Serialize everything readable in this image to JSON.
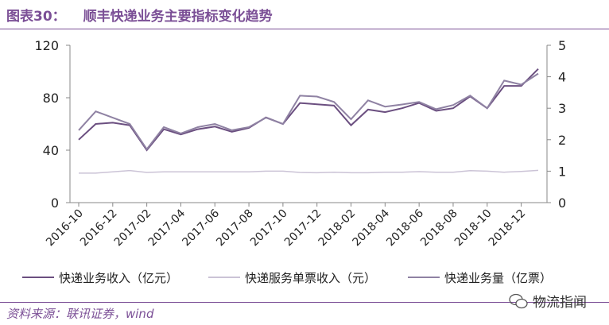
{
  "title": {
    "label": "图表30：",
    "text": "顺丰快递业务主要指标变化趋势"
  },
  "source": "资料来源：联讯证券，wind",
  "watermark": {
    "icon": "wechat-icon",
    "text": "物流指闻"
  },
  "chart_data": {
    "type": "line",
    "x": [
      "2016-10",
      "2016-11",
      "2016-12",
      "2017-01",
      "2017-02",
      "2017-03",
      "2017-04",
      "2017-05",
      "2017-06",
      "2017-07",
      "2017-08",
      "2017-09",
      "2017-10",
      "2017-11",
      "2017-12",
      "2018-01",
      "2018-02",
      "2018-03",
      "2018-04",
      "2018-05",
      "2018-06",
      "2018-07",
      "2018-08",
      "2018-09",
      "2018-10",
      "2018-11",
      "2018-12",
      "2019-01"
    ],
    "tick_labels": [
      "2016-10",
      "2016-12",
      "2017-02",
      "2017-04",
      "2017-06",
      "2017-08",
      "2017-10",
      "2017-12",
      "2018-02",
      "2018-04",
      "2018-06",
      "2018-08",
      "2018-10",
      "2018-12"
    ],
    "y_left": {
      "range": [
        0,
        120
      ],
      "ticks": [
        0,
        40,
        80,
        120
      ]
    },
    "y_right": {
      "range": [
        0,
        5
      ],
      "ticks": [
        0,
        1,
        2,
        3,
        4,
        5
      ]
    },
    "grid": false,
    "legend_placement": "bottom",
    "series": [
      {
        "name": "快递业务收入（亿元）",
        "axis": "left",
        "color": "#6b4f80",
        "values": [
          48,
          60,
          61,
          59,
          40,
          56,
          52,
          56,
          58,
          54,
          57,
          65,
          60,
          76,
          75,
          74,
          59,
          71,
          69,
          72,
          76,
          70,
          72,
          81,
          72,
          89,
          89,
          102
        ]
      },
      {
        "name": "快递服务单票收入（元）",
        "axis": "left",
        "color": "#cbc3d6",
        "values": [
          22.5,
          22.5,
          23.5,
          24.5,
          23,
          23.5,
          23.5,
          23.5,
          23.5,
          23.5,
          23.5,
          24,
          24,
          23,
          22.8,
          23.2,
          22.8,
          22.8,
          23.2,
          23.2,
          23.6,
          23.2,
          23.2,
          24.4,
          24,
          23.2,
          23.8,
          24.6
        ]
      },
      {
        "name": "快递业务量（亿票）",
        "axis": "right",
        "color": "#8f82a3",
        "values": [
          2.3,
          2.9,
          2.7,
          2.5,
          1.7,
          2.4,
          2.2,
          2.4,
          2.5,
          2.3,
          2.4,
          2.7,
          2.5,
          3.4,
          3.37,
          3.2,
          2.65,
          3.25,
          3.05,
          3.12,
          3.2,
          2.97,
          3.1,
          3.4,
          3.0,
          3.88,
          3.75,
          4.1
        ]
      }
    ]
  }
}
